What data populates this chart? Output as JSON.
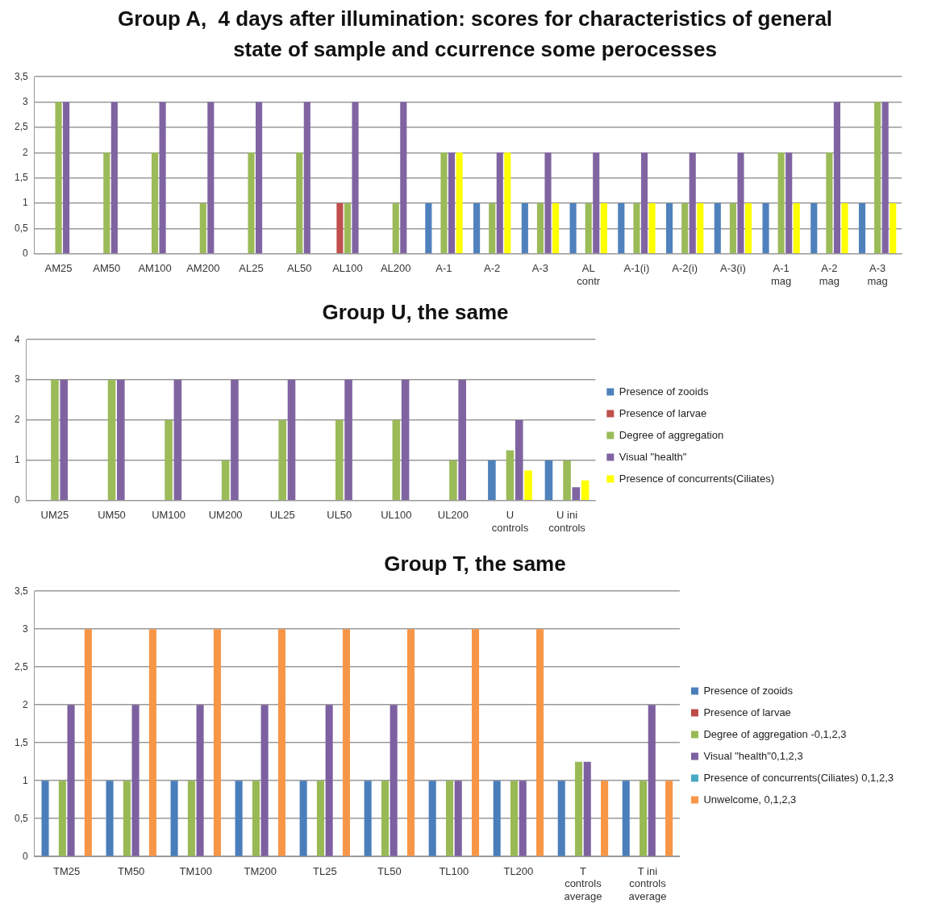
{
  "chart_data": [
    {
      "type": "bar",
      "title": "Group A,  4 days after illumination: scores for characteristics of general state of sample and ccurrence some perocesses",
      "categories": [
        "AM25",
        "AM50",
        "AM100",
        "AM200",
        "AL25",
        "AL50",
        "AL100",
        "AL200",
        "A-1",
        "A-2",
        "A-3",
        "AL contr",
        "A-1(i)",
        "A-2(i)",
        "A-3(i)",
        "A-1 mag",
        "A-2 mag",
        "A-3 mag"
      ],
      "series": [
        {
          "color": "#4f81bd",
          "values": [
            null,
            null,
            null,
            null,
            null,
            null,
            null,
            null,
            1,
            1,
            1,
            1,
            1,
            1,
            1,
            1,
            1,
            1
          ]
        },
        {
          "color": "#c0504d",
          "values": [
            null,
            null,
            null,
            null,
            null,
            null,
            1,
            null,
            null,
            null,
            null,
            null,
            null,
            null,
            null,
            null,
            null,
            null
          ]
        },
        {
          "color": "#9bbb59",
          "values": [
            3,
            2,
            2,
            1,
            2,
            2,
            1,
            1,
            2,
            1,
            1,
            1,
            1,
            1,
            1,
            2,
            2,
            3
          ]
        },
        {
          "color": "#8064a2",
          "values": [
            3,
            3,
            3,
            3,
            3,
            3,
            3,
            3,
            2,
            2,
            2,
            2,
            2,
            2,
            2,
            2,
            3,
            3
          ]
        },
        {
          "color": "#ffff00",
          "values": [
            null,
            null,
            null,
            null,
            null,
            null,
            null,
            null,
            2,
            2,
            1,
            1,
            1,
            1,
            1,
            1,
            1,
            1
          ]
        }
      ],
      "ylim": [
        0,
        3.5
      ],
      "yticks": [
        0,
        {
          "value": 0.5,
          "label": "0,5"
        },
        1,
        {
          "value": 1.5,
          "label": "1,5"
        },
        2,
        {
          "value": 2.5,
          "label": "2,5"
        },
        3,
        {
          "value": 3.5,
          "label": "3,5"
        }
      ],
      "grid": "y"
    },
    {
      "type": "bar",
      "title": "Group U, the same",
      "categories": [
        "UM25",
        "UM50",
        "UM100",
        "UM200",
        "UL25",
        "UL50",
        "UL100",
        "UL200",
        "U controls",
        "U ini controls"
      ],
      "series": [
        {
          "name": "Presence of zooids",
          "color": "#4f81bd",
          "values": [
            null,
            null,
            null,
            null,
            null,
            null,
            null,
            null,
            1,
            1
          ]
        },
        {
          "name": "Presence of larvae",
          "color": "#c0504d",
          "values": [
            null,
            null,
            null,
            null,
            null,
            null,
            null,
            null,
            null,
            null
          ]
        },
        {
          "name": "Degree of aggregation",
          "color": "#9bbb59",
          "values": [
            3,
            3,
            2,
            1,
            2,
            2,
            2,
            1,
            1.25,
            1
          ]
        },
        {
          "name": "Visual \"health\"",
          "color": "#8064a2",
          "values": [
            3,
            3,
            3,
            3,
            3,
            3,
            3,
            3,
            2,
            0.33
          ]
        },
        {
          "name": "Presence of concurrents(Ciliates)",
          "color": "#ffff00",
          "values": [
            null,
            null,
            null,
            null,
            null,
            null,
            null,
            null,
            0.75,
            0.5
          ]
        }
      ],
      "ylim": [
        0,
        4
      ],
      "yticks": [
        0,
        1,
        2,
        3,
        4
      ],
      "grid": "y",
      "legend": "right"
    },
    {
      "type": "bar",
      "title": "Group T, the same",
      "categories": [
        "TM25",
        "TM50",
        "TM100",
        "TM200",
        "TL25",
        "TL50",
        "TL100",
        "TL200",
        "T controls average",
        "T ini controls average"
      ],
      "series": [
        {
          "name": "Presence of zooids",
          "color": "#4a7ebb",
          "values": [
            1,
            1,
            1,
            1,
            1,
            1,
            1,
            1,
            1,
            1
          ]
        },
        {
          "name": "Presence of larvae",
          "color": "#be4b48",
          "values": [
            null,
            null,
            null,
            null,
            null,
            null,
            null,
            null,
            null,
            null
          ]
        },
        {
          "name": "Degree of aggregation -0,1,2,3",
          "color": "#98b954",
          "values": [
            1,
            1,
            1,
            1,
            1,
            1,
            1,
            1,
            1.25,
            1
          ]
        },
        {
          "name": "Visual \"health\"0,1,2,3",
          "color": "#7d60a0",
          "values": [
            2,
            2,
            2,
            2,
            2,
            2,
            1,
            1,
            1.25,
            2
          ]
        },
        {
          "name": "Presence of concurrents(Ciliates) 0,1,2,3",
          "color": "#46aac5",
          "values": [
            null,
            null,
            null,
            null,
            null,
            null,
            null,
            null,
            null,
            null
          ]
        },
        {
          "name": "Unwelcome, 0,1,2,3",
          "color": "#f79646",
          "values": [
            3,
            3,
            3,
            3,
            3,
            3,
            3,
            3,
            1,
            1
          ]
        }
      ],
      "ylim": [
        0,
        3.5
      ],
      "yticks": [
        0,
        {
          "value": 0.5,
          "label": "0,5"
        },
        1,
        {
          "value": 1.5,
          "label": "1,5"
        },
        2,
        {
          "value": 2.5,
          "label": "2,5"
        },
        3,
        {
          "value": 3.5,
          "label": "3,5"
        }
      ],
      "grid": "y",
      "legend": "right"
    }
  ]
}
